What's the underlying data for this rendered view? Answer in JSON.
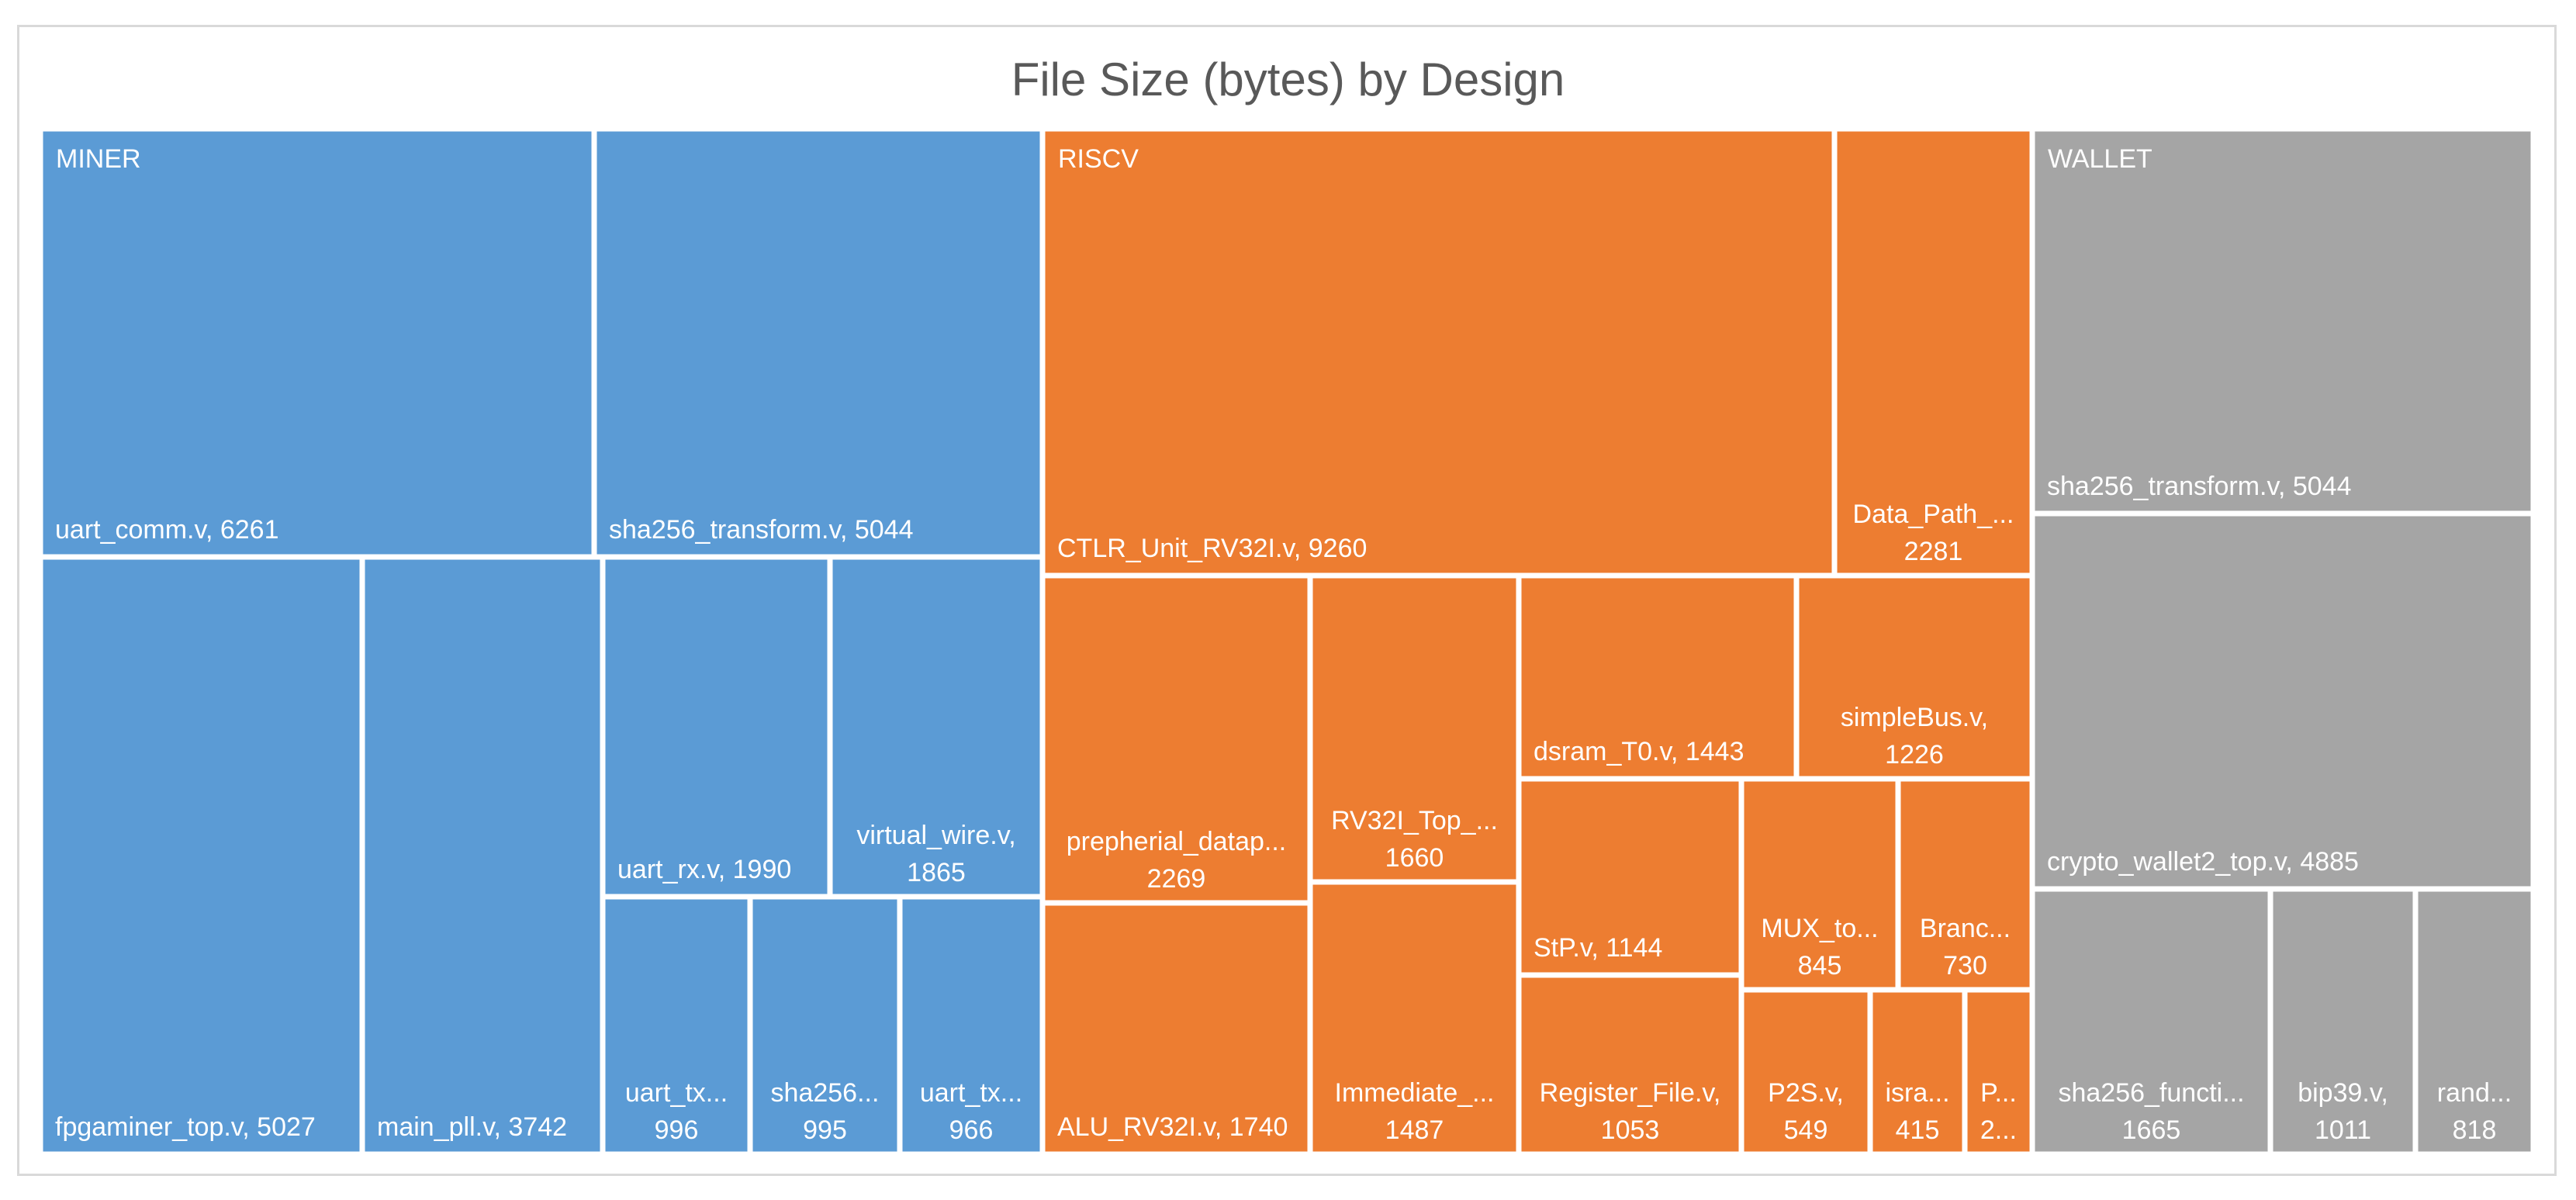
{
  "chart_data": {
    "type": "treemap",
    "title": "File Size (bytes) by Design",
    "colors": {
      "MINER": "#5b9bd5",
      "RISCV": "#ed7d31",
      "WALLET": "#a5a5a5"
    },
    "groups": [
      {
        "name": "MINER",
        "items": [
          {
            "name": "uart_comm.v",
            "value": 6261,
            "label": "uart_comm.v, 6261"
          },
          {
            "name": "sha256_transform.v",
            "value": 5044,
            "label": "sha256_transform.v, 5044"
          },
          {
            "name": "fpgaminer_top.v",
            "value": 5027,
            "label": "fpgaminer_top.v, 5027"
          },
          {
            "name": "main_pll.v",
            "value": 3742,
            "label": "main_pll.v, 3742"
          },
          {
            "name": "uart_rx.v",
            "value": 1990,
            "label": "uart_rx.v, 1990"
          },
          {
            "name": "virtual_wire.v",
            "value": 1865,
            "label": [
              "virtual_wire.v,",
              "1865"
            ]
          },
          {
            "name": "uart_tx",
            "value": 996,
            "label": [
              "uart_tx...",
              "996"
            ]
          },
          {
            "name": "sha256",
            "value": 995,
            "label": [
              "sha256...",
              "995"
            ]
          },
          {
            "name": "uart_tx",
            "value": 966,
            "label": [
              "uart_tx...",
              "966"
            ]
          }
        ]
      },
      {
        "name": "RISCV",
        "items": [
          {
            "name": "CTLR_Unit_RV32I.v",
            "value": 9260,
            "label": "CTLR_Unit_RV32I.v, 9260"
          },
          {
            "name": "Data_Path",
            "value": 2281,
            "label": [
              "Data_Path_...",
              "2281"
            ]
          },
          {
            "name": "prepherial_datap",
            "value": 2269,
            "label": [
              "prepherial_datap...",
              "2269"
            ]
          },
          {
            "name": "ALU_RV32I.v",
            "value": 1740,
            "label": "ALU_RV32I.v, 1740"
          },
          {
            "name": "RV32I_Top",
            "value": 1660,
            "label": [
              "RV32I_Top_...",
              "1660"
            ]
          },
          {
            "name": "Immediate",
            "value": 1487,
            "label": [
              "Immediate_...",
              "1487"
            ]
          },
          {
            "name": "dsram_T0.v",
            "value": 1443,
            "label": "dsram_T0.v, 1443"
          },
          {
            "name": "simpleBus.v",
            "value": 1226,
            "label": [
              "simpleBus.v,",
              "1226"
            ]
          },
          {
            "name": "StP.v",
            "value": 1144,
            "label": "StP.v, 1144"
          },
          {
            "name": "Register_File.v",
            "value": 1053,
            "label": [
              "Register_File.v,",
              "1053"
            ]
          },
          {
            "name": "MUX_to",
            "value": 845,
            "label": [
              "MUX_to...",
              "845"
            ]
          },
          {
            "name": "Branc",
            "value": 730,
            "label": [
              "Branc...",
              "730"
            ]
          },
          {
            "name": "P2S.v",
            "value": 549,
            "label": [
              "P2S.v,",
              "549"
            ]
          },
          {
            "name": "isra",
            "value": 415,
            "label": [
              "isra...",
              "415"
            ]
          },
          {
            "name": "P",
            "value": null,
            "label": [
              "P...",
              "2..."
            ]
          }
        ]
      },
      {
        "name": "WALLET",
        "items": [
          {
            "name": "sha256_transform.v",
            "value": 5044,
            "label": "sha256_transform.v, 5044"
          },
          {
            "name": "crypto_wallet2_top.v",
            "value": 4885,
            "label": "crypto_wallet2_top.v, 4885"
          },
          {
            "name": "sha256_functi",
            "value": 1665,
            "label": [
              "sha256_functi...",
              "1665"
            ]
          },
          {
            "name": "bip39.v",
            "value": 1011,
            "label": [
              "bip39.v,",
              "1011"
            ]
          },
          {
            "name": "rand",
            "value": 818,
            "label": [
              "rand...",
              "818"
            ]
          }
        ]
      }
    ]
  }
}
